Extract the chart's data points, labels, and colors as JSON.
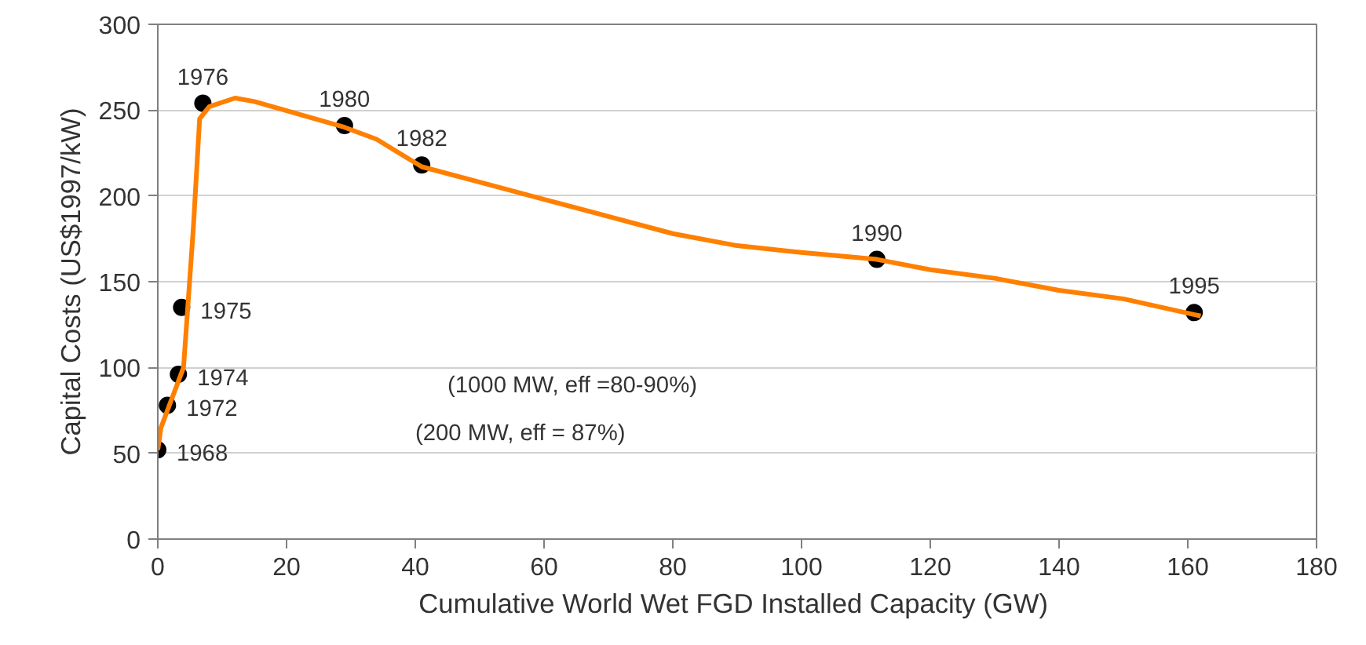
{
  "chart_data": {
    "type": "scatter",
    "xlabel": "Cumulative World Wet FGD  Installed Capacity (GW)",
    "ylabel": "Capital Costs (US$1997/kW)",
    "xlim": [
      0,
      180
    ],
    "xticks": [
      0,
      20,
      40,
      60,
      80,
      100,
      120,
      140,
      160,
      180
    ],
    "ylim": [
      0,
      300
    ],
    "yticks": [
      0,
      50,
      100,
      150,
      200,
      250,
      300
    ],
    "grid": "y",
    "series": [
      {
        "marker": "circle",
        "color": "#000000",
        "x": [
          0,
          1.5,
          3.2,
          3.7,
          7,
          29,
          41,
          111.7,
          161
        ],
        "values": [
          52,
          78,
          96,
          135,
          254,
          241,
          218,
          163,
          132
        ]
      },
      {
        "type": "line",
        "color": "#ff8000",
        "x": [
          0,
          0.5,
          2,
          4,
          5.5,
          6.5,
          8,
          12,
          15,
          29,
          34,
          41,
          50,
          60,
          70,
          80,
          90,
          100,
          111.7,
          120,
          130,
          140,
          150,
          162
        ],
        "values": [
          52,
          65,
          80,
          100,
          180,
          245,
          252,
          257,
          255,
          240,
          233,
          217,
          208,
          198,
          188,
          178,
          171,
          167,
          163,
          157,
          152,
          145,
          140,
          130
        ]
      }
    ],
    "annotations": [
      {
        "text": "1968",
        "x": 0,
        "y": 52
      },
      {
        "text": "1972",
        "x": 1.5,
        "y": 78
      },
      {
        "text": "1974",
        "x": 3.2,
        "y": 96
      },
      {
        "text": "1975",
        "x": 3.7,
        "y": 135
      },
      {
        "text": "1976",
        "x": 7,
        "y": 254
      },
      {
        "text": "1980",
        "x": 29,
        "y": 241
      },
      {
        "text": "1982",
        "x": 41,
        "y": 218
      },
      {
        "text": "1990",
        "x": 111.7,
        "y": 163
      },
      {
        "text": "1995",
        "x": 161,
        "y": 132
      },
      "(1000 MW, eff =80-90%)",
      "(200 MW, eff = 87%)"
    ]
  }
}
